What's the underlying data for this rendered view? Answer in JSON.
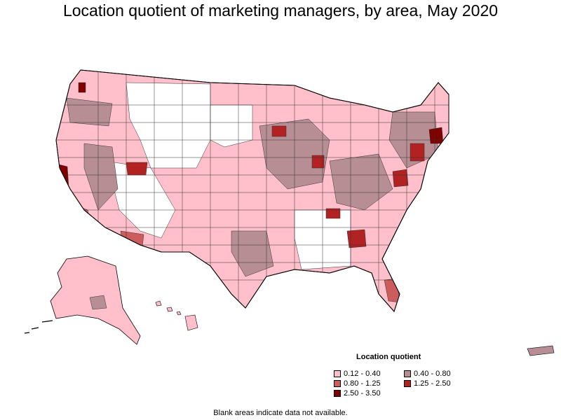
{
  "title": "Location quotient of marketing managers, by area, May 2020",
  "legend": {
    "title": "Location quotient",
    "items": [
      {
        "label": "0.12 - 0.40",
        "color": "#ffc0cb"
      },
      {
        "label": "0.40 - 0.80",
        "color": "#b88e95"
      },
      {
        "label": "0.80 - 1.25",
        "color": "#cd5c5c"
      },
      {
        "label": "1.25 - 2.50",
        "color": "#b22222"
      },
      {
        "label": "2.50 - 3.50",
        "color": "#800000"
      }
    ]
  },
  "footnote": "Blank areas indicate data not available."
}
